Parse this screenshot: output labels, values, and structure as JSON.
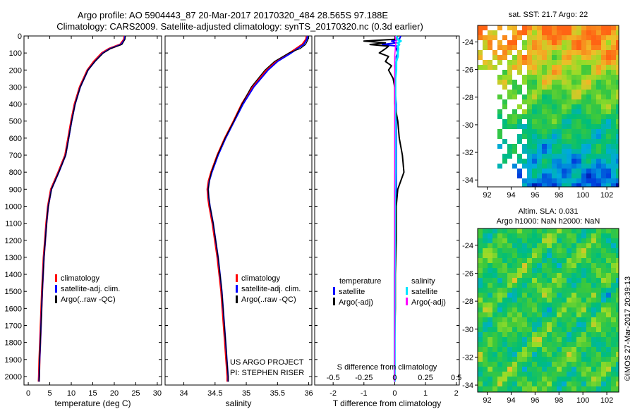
{
  "header": {
    "line1": "Argo profile: AO 5904443_87 20-Mar-2017 20170320_484 28.565S 97.188E",
    "line2": "Climatology: CARS2009. Satellite-adjusted climatology: synTS_20170320.nc (0.3d earlier)"
  },
  "colors": {
    "climatology": "#ff0000",
    "satellite": "#0000ff",
    "argo": "#000000",
    "sat_salinity": "#00e5ff",
    "argo_salinity": "#ff00ff"
  },
  "chart_data": [
    {
      "id": "temperature",
      "type": "line",
      "xlabel": "temperature (deg C)",
      "ylabel": "",
      "xlim": [
        -1,
        31
      ],
      "ylim": [
        2050,
        0
      ],
      "xticks": [
        0,
        5,
        10,
        15,
        20,
        25,
        30
      ],
      "xtick_labels": [
        "0",
        "5",
        "10",
        "15",
        "20",
        "25",
        "30"
      ],
      "yticks": [
        0,
        100,
        200,
        300,
        400,
        500,
        600,
        700,
        800,
        900,
        1000,
        1100,
        1200,
        1300,
        1400,
        1500,
        1600,
        1700,
        1800,
        1900,
        2000
      ],
      "ytick_labels": [
        "0",
        "100",
        "200",
        "300",
        "400",
        "500",
        "600",
        "700",
        "800",
        "900",
        "1000",
        "1100",
        "1200",
        "1300",
        "1400",
        "1500",
        "1600",
        "1700",
        "1800",
        "1900",
        "2000"
      ],
      "legend": [
        "climatology",
        "satellite-adj. clim.",
        "Argo(..raw -QC)"
      ],
      "depth": [
        0,
        20,
        50,
        75,
        100,
        150,
        200,
        300,
        400,
        500,
        600,
        700,
        800,
        900,
        1000,
        1100,
        1200,
        1300,
        1400,
        1500,
        1600,
        1700,
        1800,
        1900,
        2000,
        2030
      ],
      "series": [
        {
          "name": "climatology",
          "values": [
            22.4,
            22.3,
            21.4,
            18.8,
            17.2,
            15.3,
            13.8,
            12.0,
            10.8,
            10.0,
            9.3,
            8.6,
            7.0,
            5.3,
            4.6,
            4.2,
            3.9,
            3.6,
            3.4,
            3.2,
            3.05,
            2.9,
            2.75,
            2.6,
            2.5,
            2.45
          ]
        },
        {
          "name": "satellite-adj. clim.",
          "values": [
            22.5,
            22.4,
            21.6,
            19.0,
            17.4,
            15.5,
            13.9,
            12.1,
            10.9,
            10.1,
            9.4,
            8.7,
            7.1,
            5.4,
            4.65,
            4.25,
            3.95,
            3.65,
            3.45,
            3.25,
            3.1,
            2.95,
            2.8,
            2.65,
            2.55,
            2.5
          ]
        },
        {
          "name": "Argo(..raw -QC)",
          "values": [
            22.6,
            22.5,
            21.8,
            19.1,
            17.5,
            15.5,
            13.9,
            12.1,
            10.9,
            10.1,
            9.4,
            8.7,
            7.1,
            5.4,
            4.65,
            4.25,
            3.95,
            3.65,
            3.45,
            3.25,
            3.1,
            2.95,
            2.8,
            2.65,
            2.55,
            2.5
          ]
        }
      ]
    },
    {
      "id": "salinity",
      "type": "line",
      "xlabel": "salinity",
      "xlim": [
        33.7,
        36.05
      ],
      "ylim": [
        2050,
        0
      ],
      "xticks": [
        34,
        34.5,
        35,
        35.5,
        36
      ],
      "xtick_labels": [
        "34",
        "34.5",
        "35",
        "35.5",
        "36"
      ],
      "legend": [
        "climatology",
        "satellite-adj. clim.",
        "Argo(..raw -QC)"
      ],
      "annotation": [
        "US ARGO PROJECT",
        "PI: STEPHEN RISER"
      ],
      "depth": [
        0,
        20,
        50,
        75,
        100,
        150,
        200,
        300,
        400,
        500,
        600,
        700,
        800,
        850,
        900,
        950,
        1000,
        1100,
        1200,
        1300,
        1400,
        1500,
        1600,
        1700,
        1800,
        1900,
        2000,
        2030
      ],
      "series": [
        {
          "name": "climatology",
          "values": [
            35.97,
            35.96,
            35.9,
            35.8,
            35.7,
            35.48,
            35.33,
            35.1,
            34.93,
            34.8,
            34.66,
            34.54,
            34.44,
            34.4,
            34.38,
            34.39,
            34.41,
            34.46,
            34.5,
            34.54,
            34.57,
            34.6,
            34.62,
            34.64,
            34.66,
            34.68,
            34.7,
            34.7
          ]
        },
        {
          "name": "satellite-adj. clim.",
          "values": [
            35.98,
            35.97,
            35.92,
            35.82,
            35.72,
            35.5,
            35.35,
            35.12,
            34.95,
            34.81,
            34.67,
            34.55,
            34.45,
            34.41,
            34.39,
            34.4,
            34.42,
            34.47,
            34.51,
            34.55,
            34.58,
            34.61,
            34.63,
            34.65,
            34.67,
            34.69,
            34.71,
            34.71
          ]
        },
        {
          "name": "Argo(..raw -QC)",
          "values": [
            36.0,
            35.99,
            35.95,
            35.86,
            35.68,
            35.45,
            35.3,
            35.08,
            34.93,
            34.8,
            34.66,
            34.54,
            34.44,
            34.41,
            34.39,
            34.4,
            34.42,
            34.47,
            34.51,
            34.55,
            34.58,
            34.61,
            34.63,
            34.65,
            34.67,
            34.69,
            34.71,
            34.71
          ]
        }
      ]
    },
    {
      "id": "difference",
      "type": "line",
      "xlabel": "T difference from climatology",
      "top_label": "S difference from climatology",
      "xlim": [
        -2.6,
        2.1
      ],
      "ylim": [
        2050,
        0
      ],
      "xticks": [
        -2,
        -1,
        0,
        1,
        2
      ],
      "xtick_labels": [
        "-2",
        "-1",
        "0",
        "1",
        "2"
      ],
      "sticks": [
        -2,
        -1,
        0,
        1,
        2
      ],
      "stick_labels": [
        "-0.5",
        "-0.25",
        "0",
        "0.25",
        "0.5"
      ],
      "legend_headers": [
        "temperature",
        "salinity"
      ],
      "legend": [
        "satellite",
        "Argo(-adj)",
        "satellite",
        "Argo(-adj)"
      ],
      "depth": [
        0,
        20,
        30,
        40,
        50,
        60,
        75,
        100,
        120,
        150,
        175,
        200,
        250,
        300,
        400,
        500,
        600,
        700,
        800,
        900,
        1000,
        1200,
        1400,
        1600,
        1800,
        2000,
        2030
      ],
      "series": [
        {
          "name": "T satellite",
          "values": [
            0.2,
            0.15,
            -0.1,
            0.05,
            -0.4,
            0.1,
            0.05,
            0.1,
            0.05,
            0.05,
            0.0,
            0.02,
            0.0,
            0.0,
            0.05,
            0.05,
            0.05,
            0.05,
            0.05,
            0.05,
            0.02,
            0.01,
            0.0,
            0.0,
            0.0,
            0.0,
            0.0
          ]
        },
        {
          "name": "T Argo(-adj)",
          "values": [
            0.1,
            0.0,
            -1.0,
            -0.3,
            -0.8,
            -0.2,
            -0.3,
            -0.5,
            -0.2,
            -0.3,
            -0.1,
            -0.2,
            -0.05,
            0.0,
            0.0,
            0.1,
            0.15,
            0.25,
            0.3,
            0.1,
            0.05,
            0.05,
            0.02,
            0.02,
            0.0,
            0.0,
            0.0
          ]
        },
        {
          "name": "S satellite",
          "values": [
            0.05,
            0.1,
            0.2,
            0.1,
            0.15,
            0.1,
            0.12,
            0.1,
            0.1,
            0.05,
            0.05,
            0.05,
            0.02,
            0.02,
            0.02,
            0.02,
            0.02,
            0.02,
            0.02,
            0.01,
            0.01,
            0.01,
            0.0,
            0.0,
            0.0,
            0.0,
            0.0
          ]
        },
        {
          "name": "S Argo(-adj)",
          "values": [
            0.02,
            0.03,
            0.05,
            0.03,
            0.04,
            0.02,
            0.02,
            0.01,
            0.0,
            0.0,
            0.0,
            0.0,
            0.0,
            0.0,
            0.0,
            0.0,
            0.0,
            0.0,
            0.0,
            0.0,
            0.0,
            0.0,
            0.0,
            0.0,
            0.0,
            0.0,
            0.0
          ]
        }
      ]
    },
    {
      "id": "sst_map",
      "type": "heatmap",
      "title": "sat. SST: 21.7  Argo: 22",
      "xlim": [
        91.2,
        103
      ],
      "ylim": [
        -34.5,
        -22.8
      ],
      "xticks": [
        92,
        94,
        96,
        98,
        100,
        102
      ],
      "xtick_labels": [
        "92",
        "94",
        "96",
        "98",
        "100",
        "102"
      ],
      "yticks": [
        -24,
        -26,
        -28,
        -30,
        -32,
        -34
      ],
      "ytick_labels": [
        "-24",
        "-26",
        "-28",
        "-30",
        "-32",
        "-34"
      ]
    },
    {
      "id": "sla_map",
      "type": "heatmap",
      "title": "Altim. SLA: 0.031",
      "subtitle": "Argo h1000: NaN h2000: NaN",
      "xlim": [
        91.2,
        103
      ],
      "ylim": [
        -34.5,
        -22.8
      ],
      "xticks": [
        92,
        94,
        96,
        98,
        100,
        102
      ],
      "xtick_labels": [
        "92",
        "94",
        "96",
        "98",
        "100",
        "102"
      ],
      "yticks": [
        -24,
        -26,
        -28,
        -30,
        -32,
        -34
      ],
      "ytick_labels": [
        "-24",
        "-26",
        "-28",
        "-30",
        "-32",
        "-34"
      ]
    }
  ],
  "footer": "©IMOS 27-Mar-2017 20:39:13"
}
